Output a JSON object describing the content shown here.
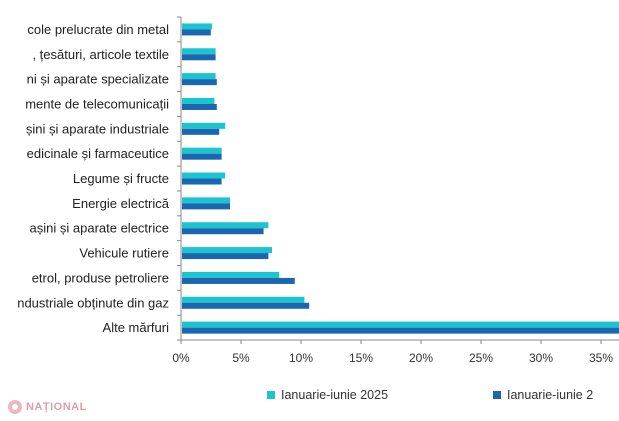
{
  "chart_data": {
    "type": "bar",
    "orientation": "horizontal",
    "categories": [
      "cole prelucrate din metal",
      ", țesături, articole textile",
      "ni și aparate specializate",
      "mente de telecomunicații",
      "șini și aparate industriale",
      "edicinale și farmaceutice",
      "Legume și fructe",
      "Energie electrică",
      "așini și aparate electrice",
      "Vehicule rutiere",
      "etrol, produse petroliere",
      "ndustriale obținute din gaz",
      "Alte mărfuri"
    ],
    "series": [
      {
        "name": "Ianuarie-iunie 2025",
        "color": "#1cc4cf",
        "values": [
          2.5,
          2.8,
          2.8,
          2.7,
          3.6,
          3.3,
          3.6,
          4.0,
          7.2,
          7.5,
          8.1,
          10.2,
          37.0
        ]
      },
      {
        "name": "Ianuarie-iunie 2",
        "color": "#1b66b0",
        "values": [
          2.4,
          2.8,
          2.9,
          2.9,
          3.1,
          3.3,
          3.3,
          4.0,
          6.8,
          7.2,
          9.4,
          10.6,
          37.0
        ]
      }
    ],
    "x_ticks": [
      "0%",
      "5%",
      "10%",
      "15%",
      "20%",
      "25%",
      "30%",
      "35%"
    ],
    "xlim": [
      0,
      36.5
    ],
    "grid": false,
    "legend_position": "bottom"
  },
  "logo": {
    "text": "NAȚIONAL"
  }
}
